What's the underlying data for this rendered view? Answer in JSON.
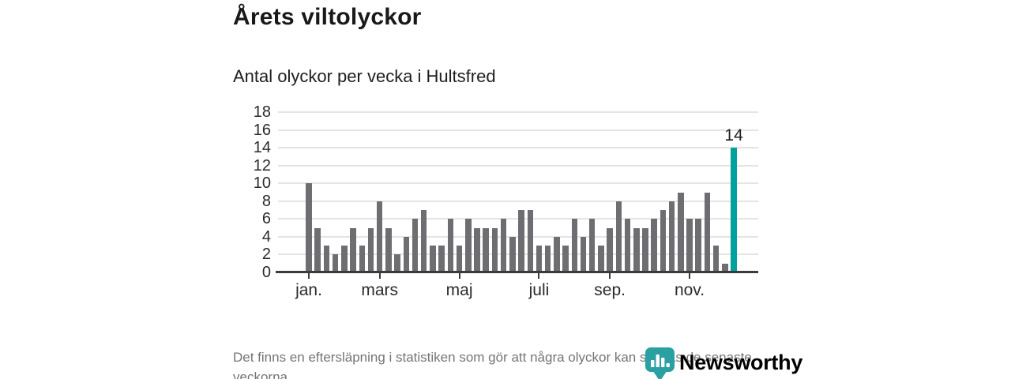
{
  "header": {
    "title": "Årets viltolyckor",
    "subtitle": "Antal olyckor per vecka i Hultsfred"
  },
  "chart_data": {
    "type": "bar",
    "title": "Årets viltolyckor",
    "subtitle": "Antal olyckor per vecka i Hultsfred",
    "x_unit": "vecka (week of year, 1-49)",
    "values": [
      10,
      5,
      3,
      2,
      3,
      5,
      3,
      5,
      8,
      5,
      2,
      4,
      6,
      7,
      3,
      3,
      6,
      3,
      6,
      5,
      5,
      5,
      6,
      4,
      7,
      7,
      3,
      3,
      4,
      3,
      6,
      4,
      6,
      3,
      5,
      8,
      6,
      5,
      5,
      6,
      7,
      8,
      9,
      6,
      6,
      9,
      3,
      1,
      14
    ],
    "highlight": {
      "index": 48,
      "value": 14,
      "label": "14"
    },
    "y_ticks": [
      0,
      2,
      4,
      6,
      8,
      10,
      12,
      14,
      16,
      18
    ],
    "ylim": [
      0,
      18
    ],
    "x_ticks": [
      {
        "label": "jan.",
        "week": 1
      },
      {
        "label": "mars",
        "week": 9
      },
      {
        "label": "maj",
        "week": 18
      },
      {
        "label": "juli",
        "week": 27
      },
      {
        "label": "sep.",
        "week": 35
      },
      {
        "label": "nov.",
        "week": 44
      }
    ],
    "grid": true,
    "colors": {
      "bar": "#6d6d72",
      "highlight": "#00a19d",
      "gridline": "#e4e4e4",
      "axis": "#3b3b3b"
    }
  },
  "footer": {
    "note": "Det finns en eftersläpning i statistiken som gör att några olyckor kan saknas de senaste veckorna."
  },
  "logo": {
    "text": "Newsworthy",
    "color": "#3aa2a5"
  }
}
